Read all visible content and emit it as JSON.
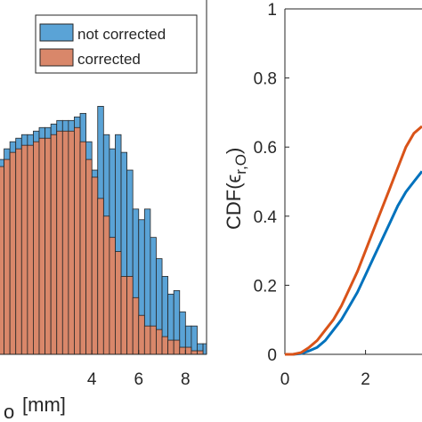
{
  "colors": {
    "not_corrected": "#5aa3d6",
    "corrected": "#d9876a",
    "cdf_not_corrected": "#0072bd",
    "cdf_corrected": "#d95319",
    "axis": "#262626",
    "bar_edge": "#262626"
  },
  "chart_data": [
    {
      "type": "bar",
      "subtype": "histogram-overlay",
      "xlabel": "[mm]",
      "xlim": [
        0.0,
        8.9
      ],
      "x_ticks": [
        "4",
        "6",
        "8"
      ],
      "ylim": [
        0,
        1.0
      ],
      "bin_width": 0.25,
      "bin_start": 0.0,
      "legend": {
        "placement": "top-right",
        "entries": [
          "not corrected",
          "corrected"
        ]
      },
      "series": [
        {
          "name": "not corrected",
          "values": [
            0.55,
            0.58,
            0.6,
            0.61,
            0.62,
            0.62,
            0.63,
            0.64,
            0.64,
            0.65,
            0.66,
            0.66,
            0.66,
            0.67,
            0.68,
            0.6,
            0.52,
            0.7,
            0.62,
            0.58,
            0.62,
            0.57,
            0.52,
            0.41,
            0.38,
            0.41,
            0.33,
            0.27,
            0.22,
            0.17,
            0.18,
            0.12,
            0.08,
            0.08,
            0.03,
            0.03
          ]
        },
        {
          "name": "corrected",
          "values": [
            0.53,
            0.55,
            0.57,
            0.58,
            0.59,
            0.59,
            0.6,
            0.61,
            0.61,
            0.62,
            0.63,
            0.63,
            0.63,
            0.64,
            0.6,
            0.55,
            0.5,
            0.44,
            0.39,
            0.33,
            0.29,
            0.22,
            0.22,
            0.16,
            0.11,
            0.08,
            0.08,
            0.07,
            0.05,
            0.04,
            0.04,
            0.02,
            0.02,
            0.01,
            0.01,
            0.0
          ]
        }
      ]
    },
    {
      "type": "line",
      "ylabel_main": "CDF(",
      "ylabel_epsilon": "ϵ",
      "ylabel_sub": "r,O",
      "ylabel_close": ")",
      "xlim": [
        0,
        3.4
      ],
      "ylim": [
        0,
        1
      ],
      "x_ticks": [
        "0",
        "2"
      ],
      "y_ticks": [
        "0",
        "0.2",
        "0.4",
        "0.6",
        "0.8",
        "1"
      ],
      "series": [
        {
          "name": "not corrected",
          "x": [
            0,
            0.2,
            0.4,
            0.6,
            0.8,
            1.0,
            1.2,
            1.4,
            1.6,
            1.8,
            2.0,
            2.2,
            2.4,
            2.6,
            2.8,
            3.0,
            3.2,
            3.4
          ],
          "y": [
            0,
            0,
            0.002,
            0.01,
            0.02,
            0.04,
            0.07,
            0.1,
            0.14,
            0.18,
            0.23,
            0.28,
            0.33,
            0.38,
            0.43,
            0.47,
            0.5,
            0.53
          ]
        },
        {
          "name": "corrected",
          "x": [
            0,
            0.2,
            0.4,
            0.6,
            0.8,
            1.0,
            1.2,
            1.4,
            1.6,
            1.8,
            2.0,
            2.2,
            2.4,
            2.6,
            2.8,
            3.0,
            3.2,
            3.4
          ],
          "y": [
            0,
            0,
            0.005,
            0.02,
            0.04,
            0.07,
            0.1,
            0.14,
            0.19,
            0.24,
            0.3,
            0.36,
            0.42,
            0.48,
            0.54,
            0.6,
            0.64,
            0.66
          ]
        }
      ]
    }
  ]
}
